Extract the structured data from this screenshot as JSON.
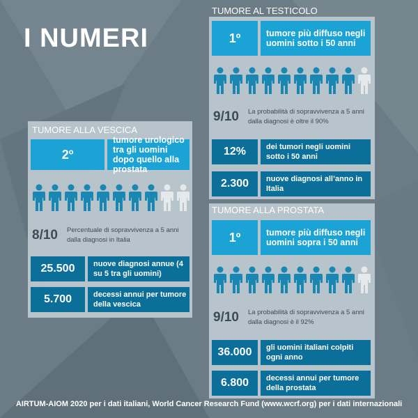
{
  "page_title": "I NUMERI",
  "colors": {
    "accent": "#1aa3d4",
    "accent_dark": "#0b6f99",
    "person_on": "#1a86b2",
    "person_off": "#e6e9eb"
  },
  "vescica": {
    "header": "TUMORE ALLA VESCICA",
    "rank": "2º",
    "rank_text": "tumore urologico tra gli uomini dopo quello alla prostata",
    "people_highlighted": 8,
    "people_total": 10,
    "survival_ratio": "8/10",
    "survival_text": "Percentuale di sopravvivenza a 5 anni dalla diagnosi in Italia",
    "diagnoses_value": "25.500",
    "diagnoses_text": "nuove diagnosi annue (4 su 5 tra gli uomini)",
    "deaths_value": "5.700",
    "deaths_text": "decessi annui per tumore della vescica"
  },
  "testicolo": {
    "header": "TUMORE AL TESTICOLO",
    "rank": "1º",
    "rank_text": "tumore più diffuso negli uomini sotto i 50 anni",
    "people_highlighted": 9,
    "people_total": 10,
    "survival_ratio": "9/10",
    "survival_text": "La probabilità di sopravvivenza a 5 anni dalla diagnosi è oltre il 90%",
    "percent_value": "12%",
    "percent_text": "dei tumori negli uomini sotto i 50 anni",
    "diagnoses_value": "2.300",
    "diagnoses_text": "nuove diagnosi all’anno in Italia"
  },
  "prostata": {
    "header": "TUMORE ALLA PROSTATA",
    "rank": "1º",
    "rank_text": "tumore più diffuso negli uomini sopra i 50 anni",
    "people_highlighted": 9,
    "people_total": 10,
    "survival_ratio": "9/10",
    "survival_text": "La probabilità di sopravvivenza a 5 anni dalla diagnosi è il 92%",
    "affected_value": "36.000",
    "affected_text": "gli uomini italiani colpiti ogni anno",
    "deaths_value": "6.800",
    "deaths_text": "decessi annui per tumore della prostata"
  },
  "footer": "AIRTUM-AIOM 2020 per i dati italiani, World Cancer Research Fund (www.wcrf.org) per i dati internazionali"
}
